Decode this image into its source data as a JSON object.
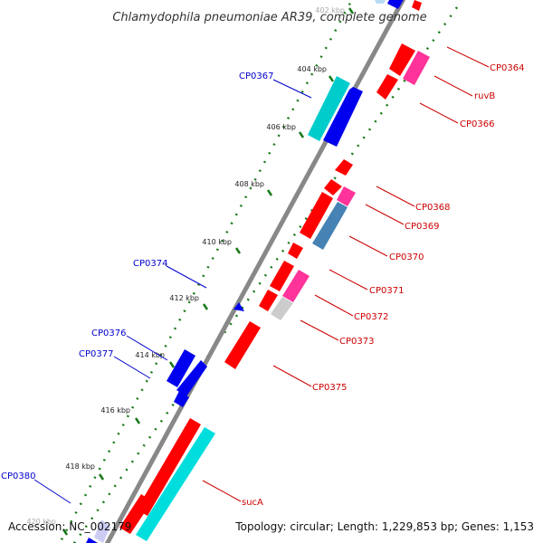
{
  "title": "Chlamydophila pneumoniae AR39, complete genome",
  "footer": {
    "accession": "Accession: NC_002179",
    "summary": "Topology: circular; Length: 1,229,853 bp; Genes: 1,153"
  },
  "colors": {
    "backbone": "#888888",
    "tick": "#1a7a1a",
    "left_label": "#0000cc",
    "right_label": "#cc0000",
    "red_gene": "#ff0000",
    "blue_gene": "#0000ee",
    "cyan_gene": "#00dddd",
    "pink_gene": "#ff3399",
    "steel_gene": "#4682b4",
    "gray_gene": "#cccccc"
  },
  "ticks": [
    {
      "label": "402 kbp"
    },
    {
      "label": "404 kbp"
    },
    {
      "label": "406 kbp"
    },
    {
      "label": "408 kbp"
    },
    {
      "label": "410 kbp"
    },
    {
      "label": "412 kbp"
    },
    {
      "label": "414 kbp"
    },
    {
      "label": "416 kbp"
    },
    {
      "label": "418 kbp"
    },
    {
      "label": "420 kbp"
    }
  ],
  "left_labels": [
    {
      "text": "CP0367"
    },
    {
      "text": "CP0374"
    },
    {
      "text": "CP0376"
    },
    {
      "text": "CP0377"
    },
    {
      "text": "CP0380"
    }
  ],
  "right_labels": [
    {
      "text": "CP0364"
    },
    {
      "text": "ruvB"
    },
    {
      "text": "CP0366"
    },
    {
      "text": "CP0368"
    },
    {
      "text": "CP0369"
    },
    {
      "text": "CP0370"
    },
    {
      "text": "CP0371"
    },
    {
      "text": "CP0372"
    },
    {
      "text": "CP0373"
    },
    {
      "text": "CP0375"
    },
    {
      "text": "sucA"
    }
  ]
}
